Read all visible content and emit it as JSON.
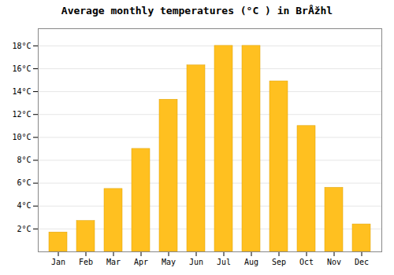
{
  "chart_data": {
    "type": "bar",
    "title": "Average monthly temperatures (°C ) in BrÅžhl",
    "categories": [
      "Jan",
      "Feb",
      "Mar",
      "Apr",
      "May",
      "Jun",
      "Jul",
      "Aug",
      "Sep",
      "Oct",
      "Nov",
      "Dec"
    ],
    "values": [
      1.7,
      2.7,
      5.5,
      9.0,
      13.3,
      16.3,
      18.0,
      18.0,
      14.9,
      11.0,
      5.6,
      2.4
    ],
    "color": "#FFC020",
    "ylim": [
      0,
      19.5
    ],
    "yticks": [
      {
        "value": 2,
        "label": "2°C"
      },
      {
        "value": 4,
        "label": "4°C"
      },
      {
        "value": 6,
        "label": "6°C"
      },
      {
        "value": 8,
        "label": "8°C"
      },
      {
        "value": 10,
        "label": "10°C"
      },
      {
        "value": 12,
        "label": "12°C"
      },
      {
        "value": 14,
        "label": "14°C"
      },
      {
        "value": 16,
        "label": "16°C"
      },
      {
        "value": 18,
        "label": "18°C"
      }
    ],
    "grid": true
  }
}
